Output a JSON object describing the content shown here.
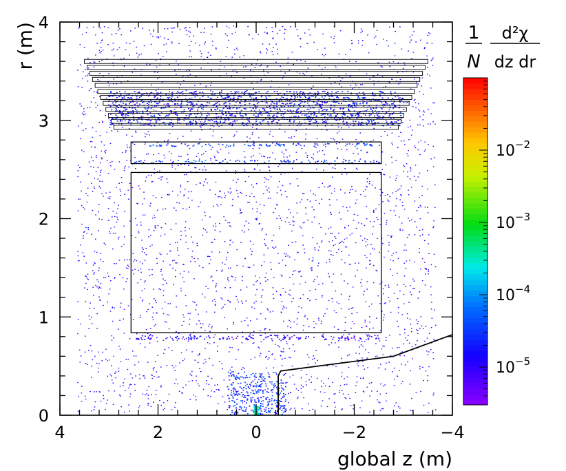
{
  "chart_data": {
    "type": "heatmap",
    "title": "",
    "xlabel": "global z (m)",
    "ylabel": "r (m)",
    "x_reversed": true,
    "xlim": [
      4,
      -4
    ],
    "ylim": [
      0,
      4
    ],
    "x_ticks": [
      4,
      2,
      0,
      -2,
      -4
    ],
    "x_tick_labels": [
      "4",
      "2",
      "0",
      "−2",
      "−4"
    ],
    "y_ticks": [
      0,
      1,
      2,
      3,
      4
    ],
    "y_tick_labels": [
      "0",
      "1",
      "2",
      "3",
      "4"
    ],
    "colorbar": {
      "title_num": "1",
      "title_den": "N",
      "title_frac_num": "d²χ",
      "title_frac_den": "dz dr",
      "scale": "log",
      "range": [
        3e-06,
        0.1
      ],
      "ticks": [
        1e-05,
        0.0001,
        0.001,
        0.01
      ],
      "tick_bases": [
        "10",
        "10",
        "10",
        "10"
      ],
      "tick_exponents": [
        "−5",
        "−4",
        "−3",
        "−2"
      ],
      "colormap": "rainbow (violet to red)"
    },
    "regions": [
      {
        "name": "dense outer barrel layers",
        "z": [
          -3,
          3
        ],
        "r": [
          2.95,
          3.3
        ],
        "level": 2e-05
      },
      {
        "name": "band near r 2.75",
        "z": [
          -2.5,
          2.5
        ],
        "r": [
          2.74,
          2.77
        ],
        "level": 4e-05
      },
      {
        "name": "band near r 2.58",
        "z": [
          -2.5,
          2.5
        ],
        "r": [
          2.57,
          2.6
        ],
        "level": 4e-05
      },
      {
        "name": "band near r 0.8",
        "z": [
          -2.5,
          2.5
        ],
        "r": [
          0.77,
          0.82
        ],
        "level": 1e-05
      },
      {
        "name": "inner detector core",
        "z": [
          -0.6,
          0.6
        ],
        "r": [
          0,
          0.45
        ],
        "level": 3e-05
      },
      {
        "name": "beam pipe peak",
        "z": [
          -0.05,
          0.05
        ],
        "r": [
          0,
          0.1
        ],
        "level": 0.0003
      }
    ],
    "outlines": [
      {
        "shape": "rect",
        "z": [
          -2.55,
          2.55
        ],
        "r": [
          0.84,
          2.47
        ]
      },
      {
        "shape": "rect",
        "z": [
          -2.55,
          2.55
        ],
        "r": [
          2.56,
          2.78
        ]
      },
      {
        "shape": "layers",
        "z_outer": [
          -3.5,
          3.5
        ],
        "r": [
          2.95,
          3.62
        ],
        "count": 12
      },
      {
        "shape": "polyline",
        "points": [
          [
            -0.45,
            0
          ],
          [
            -0.45,
            0.4
          ],
          [
            -0.5,
            0.45
          ],
          [
            -2.8,
            0.6
          ],
          [
            -4,
            0.82
          ]
        ]
      }
    ]
  }
}
